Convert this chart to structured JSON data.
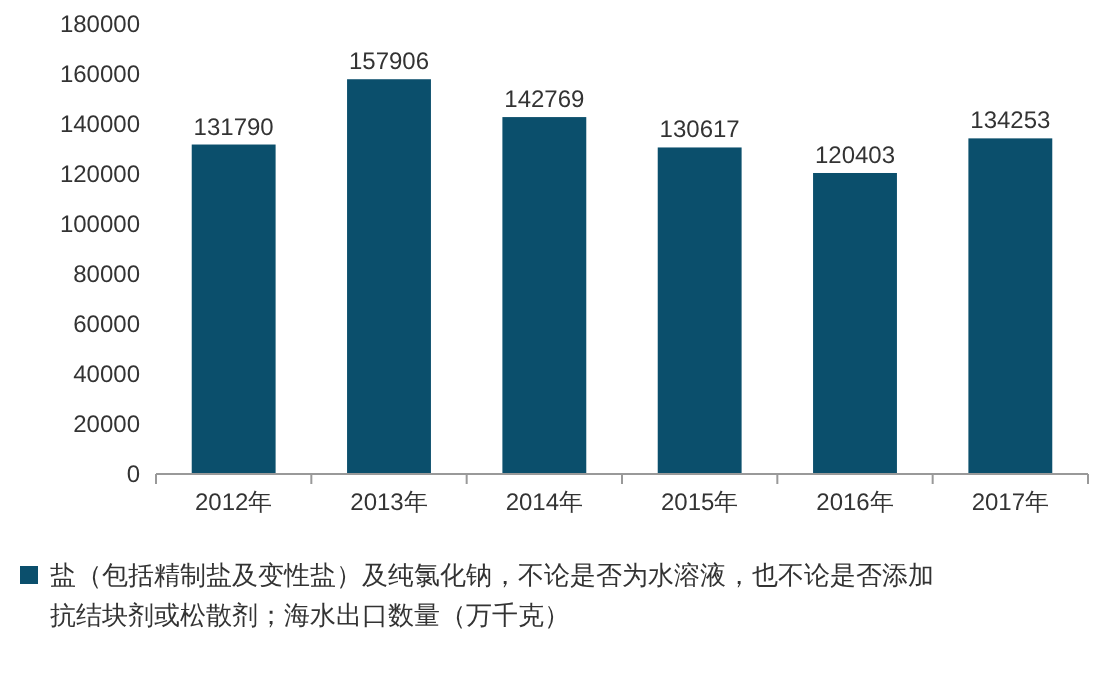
{
  "chart_data": {
    "type": "bar",
    "categories": [
      "2012年",
      "2013年",
      "2014年",
      "2015年",
      "2016年",
      "2017年"
    ],
    "series": [
      {
        "name": "盐（包括精制盐及变性盐）及纯氯化钠，不论是否为水溶液，也不论是否添加抗结块剂或松散剂；海水出口数量（万千克）",
        "color": "#0b4f6c",
        "values": [
          131790,
          157906,
          142769,
          130617,
          120403,
          134253
        ]
      }
    ],
    "ylim": [
      0,
      180000
    ],
    "yticks": [
      0,
      20000,
      40000,
      60000,
      80000,
      100000,
      120000,
      140000,
      160000,
      180000
    ],
    "data_labels": true,
    "grid": false,
    "legend": "bottom"
  }
}
